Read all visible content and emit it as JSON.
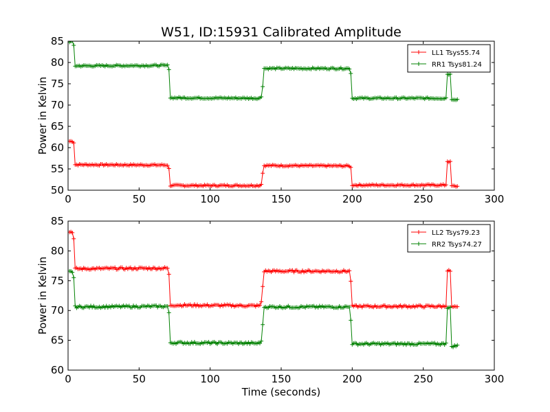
{
  "figure": {
    "title": "W51, ID:15931 Calibrated Amplitude",
    "xlabel": "Time (seconds)"
  },
  "chart_data": [
    {
      "type": "line",
      "title": "W51, ID:15931 Calibrated Amplitude",
      "xlabel": "",
      "ylabel": "Power in Kelvin",
      "xlim": [
        0,
        300
      ],
      "ylim": [
        50,
        85
      ],
      "xticks": [
        "0",
        "50",
        "100",
        "150",
        "200",
        "250",
        "300"
      ],
      "yticks": [
        "50",
        "55",
        "60",
        "65",
        "70",
        "75",
        "80",
        "85"
      ],
      "legend": "top-right",
      "grid": false,
      "series": [
        {
          "name": "LL1 Tsys55.74",
          "color": "#ff0000",
          "marker": "plus",
          "points": [
            [
              1,
              61.5
            ],
            [
              3,
              61.5
            ],
            [
              4,
              61.2
            ],
            [
              5,
              56.0
            ],
            [
              70,
              55.9
            ],
            [
              71,
              55.0
            ],
            [
              72,
              51.1
            ],
            [
              135,
              51.1
            ],
            [
              136,
              51.5
            ],
            [
              137,
              54.0
            ],
            [
              138,
              55.8
            ],
            [
              198,
              55.7
            ],
            [
              199,
              55.3
            ],
            [
              200,
              51.2
            ],
            [
              265,
              51.2
            ],
            [
              266,
              51.3
            ],
            [
              267,
              56.8
            ],
            [
              269,
              56.6
            ],
            [
              270,
              51.0
            ],
            [
              274,
              50.9
            ]
          ]
        },
        {
          "name": "RR1 Tsys81.24",
          "color": "#008000",
          "marker": "plus",
          "points": [
            [
              1,
              84.9
            ],
            [
              3,
              84.9
            ],
            [
              4,
              84.0
            ],
            [
              5,
              79.2
            ],
            [
              70,
              79.3
            ],
            [
              71,
              78.5
            ],
            [
              72,
              71.7
            ],
            [
              135,
              71.6
            ],
            [
              136,
              72.0
            ],
            [
              137,
              74.5
            ],
            [
              138,
              78.6
            ],
            [
              198,
              78.6
            ],
            [
              199,
              77.5
            ],
            [
              200,
              71.6
            ],
            [
              265,
              71.6
            ],
            [
              266,
              71.7
            ],
            [
              267,
              77.3
            ],
            [
              269,
              77.2
            ],
            [
              270,
              71.4
            ],
            [
              274,
              71.3
            ]
          ]
        }
      ]
    },
    {
      "type": "line",
      "xlabel": "Time (seconds)",
      "ylabel": "Power in Kelvin",
      "xlim": [
        0,
        300
      ],
      "ylim": [
        60,
        85
      ],
      "xticks": [
        "0",
        "50",
        "100",
        "150",
        "200",
        "250",
        "300"
      ],
      "yticks": [
        "60",
        "65",
        "70",
        "75",
        "80",
        "85"
      ],
      "legend": "top-right",
      "grid": false,
      "series": [
        {
          "name": "LL2 Tsys79.23",
          "color": "#ff0000",
          "marker": "plus",
          "points": [
            [
              1,
              83.2
            ],
            [
              3,
              83.2
            ],
            [
              4,
              82.0
            ],
            [
              5,
              77.0
            ],
            [
              70,
              77.1
            ],
            [
              71,
              76.0
            ],
            [
              72,
              70.9
            ],
            [
              135,
              70.8
            ],
            [
              136,
              71.5
            ],
            [
              137,
              74.0
            ],
            [
              138,
              76.6
            ],
            [
              198,
              76.6
            ],
            [
              199,
              75.0
            ],
            [
              200,
              70.7
            ],
            [
              265,
              70.7
            ],
            [
              266,
              70.9
            ],
            [
              267,
              76.7
            ],
            [
              269,
              76.6
            ],
            [
              270,
              70.6
            ],
            [
              274,
              70.5
            ]
          ]
        },
        {
          "name": "RR2 Tsys74.27",
          "color": "#008000",
          "marker": "plus",
          "points": [
            [
              1,
              76.5
            ],
            [
              3,
              76.5
            ],
            [
              4,
              75.5
            ],
            [
              5,
              70.6
            ],
            [
              70,
              70.7
            ],
            [
              71,
              69.5
            ],
            [
              72,
              64.6
            ],
            [
              135,
              64.5
            ],
            [
              136,
              65.0
            ],
            [
              137,
              67.5
            ],
            [
              138,
              70.6
            ],
            [
              198,
              70.6
            ],
            [
              199,
              68.5
            ],
            [
              200,
              64.4
            ],
            [
              265,
              64.4
            ],
            [
              266,
              64.6
            ],
            [
              267,
              70.5
            ],
            [
              269,
              70.4
            ],
            [
              270,
              64.0
            ],
            [
              274,
              64.1
            ]
          ]
        }
      ]
    }
  ]
}
